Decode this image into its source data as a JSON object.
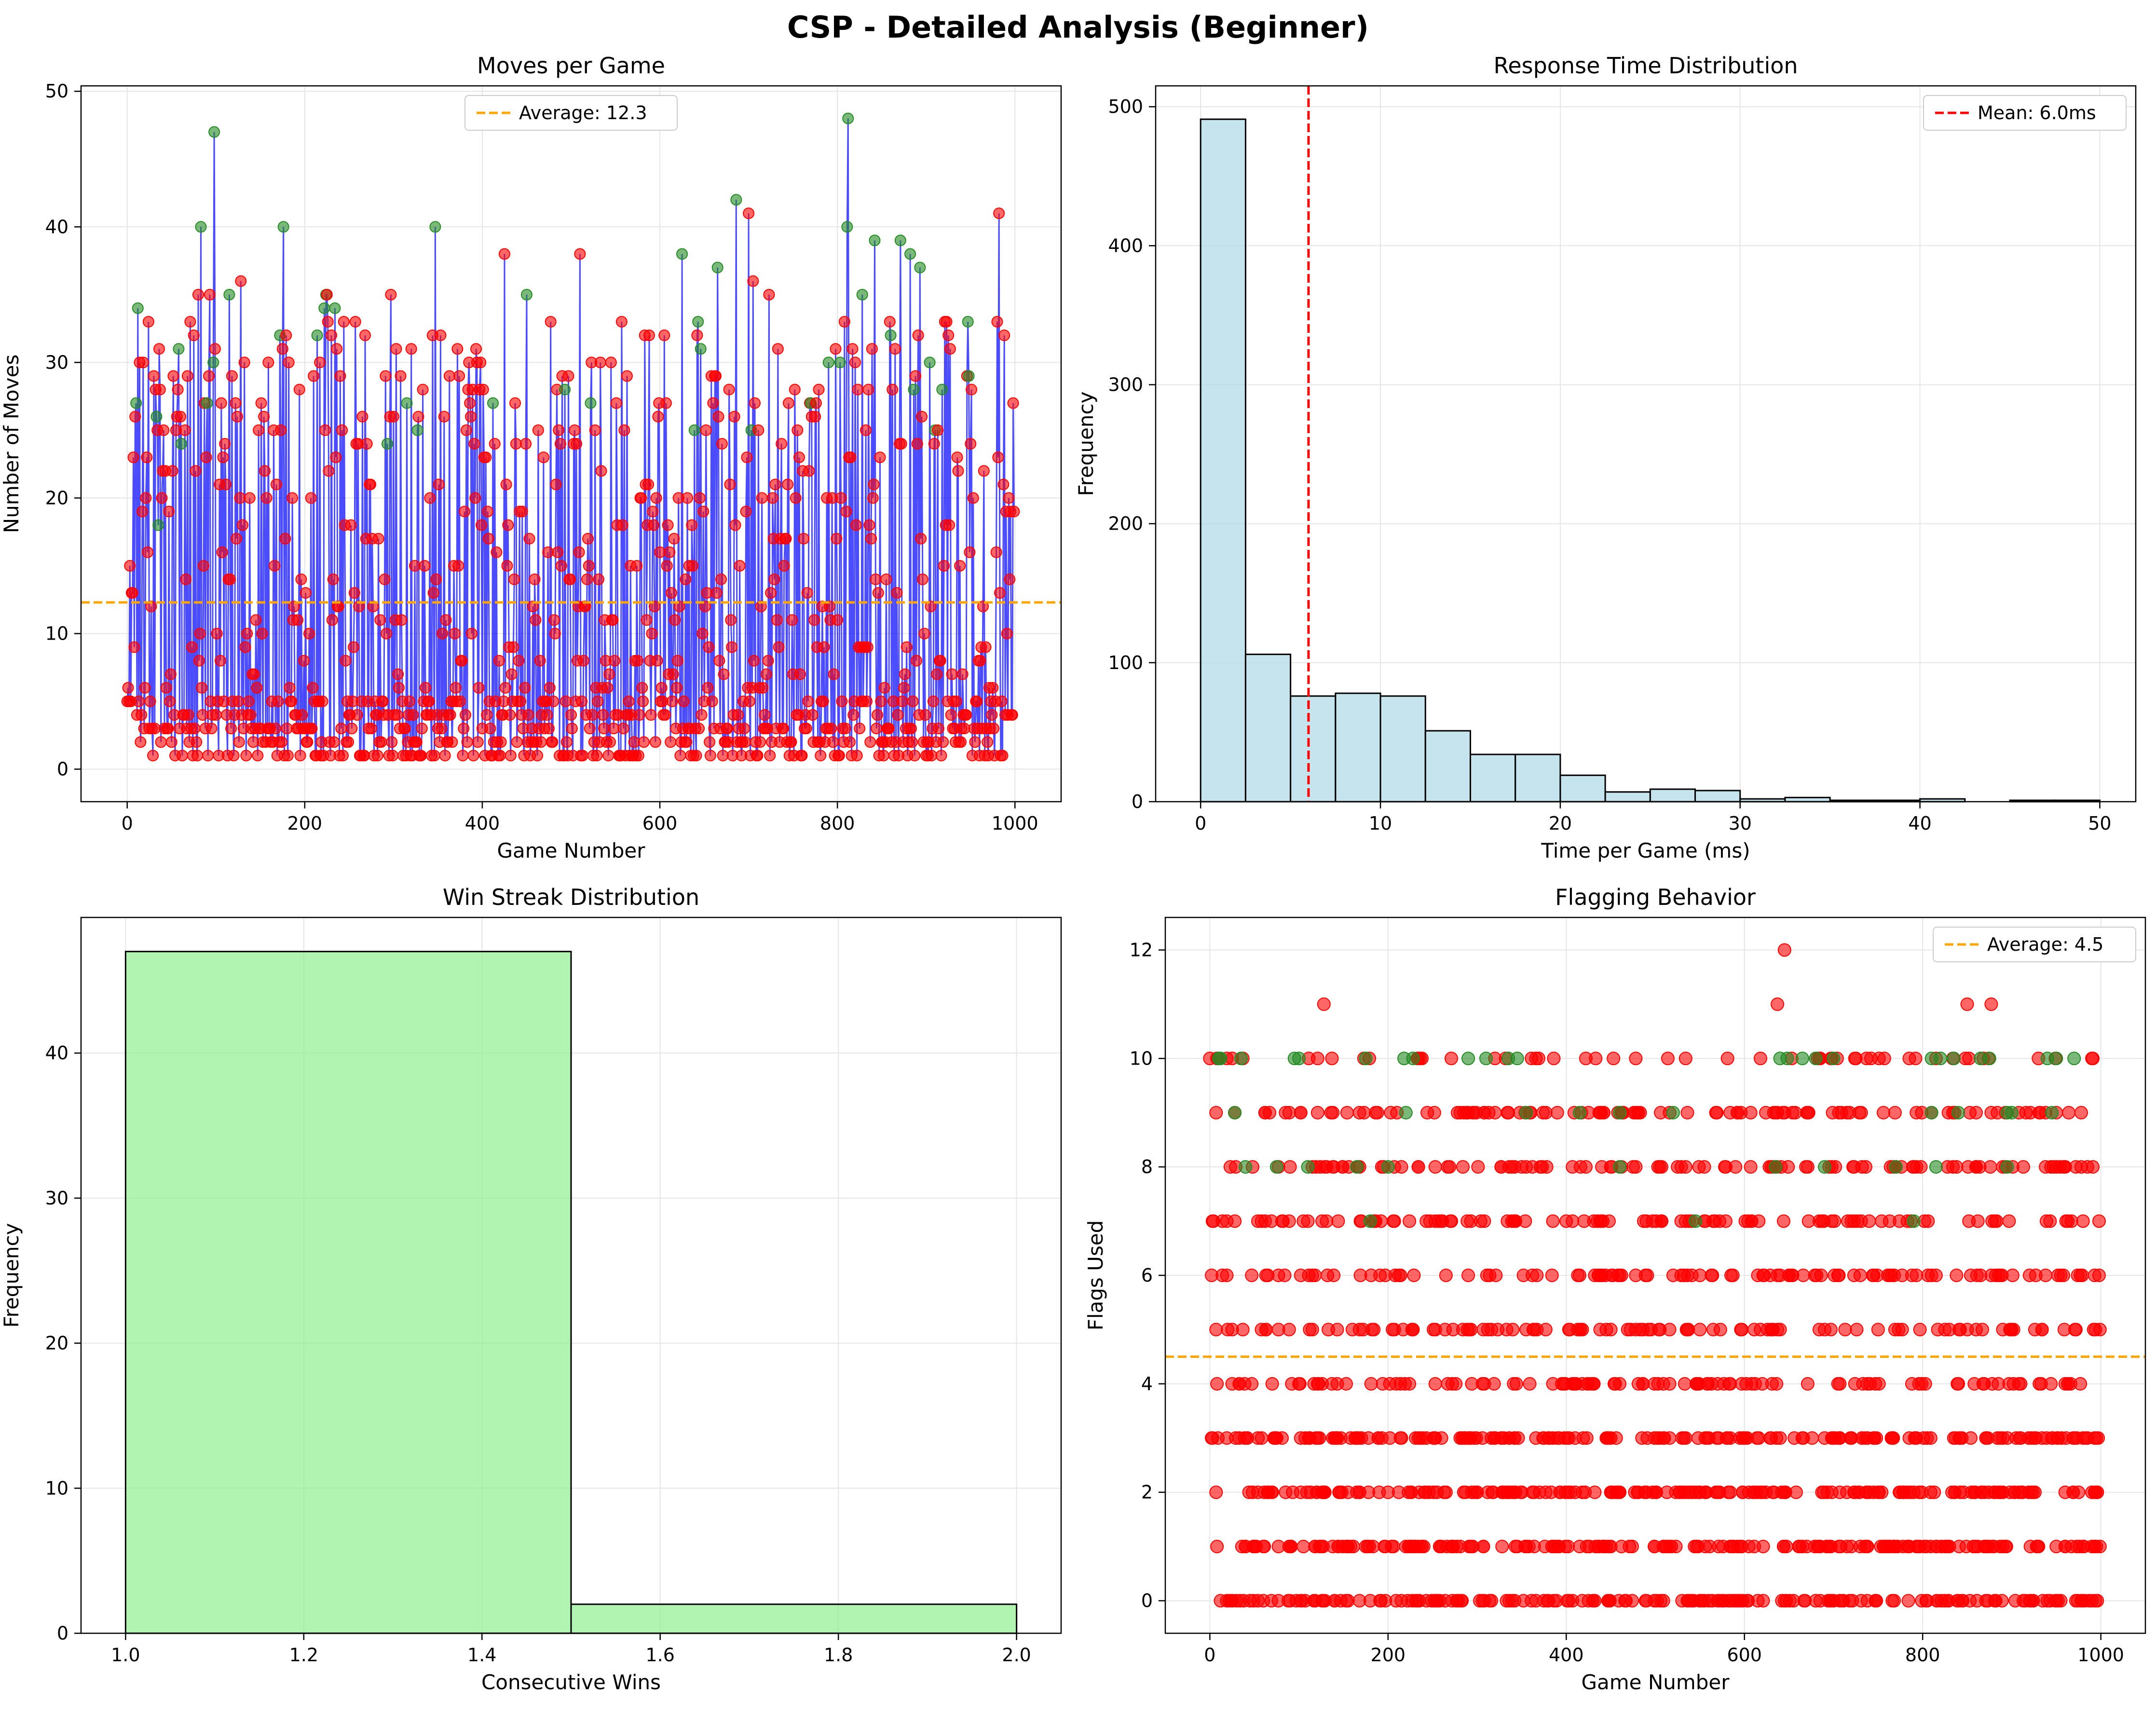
{
  "figure": {
    "title": "CSP - Detailed Analysis (Beginner)"
  },
  "colors": {
    "win_marker": "#228B22",
    "loss_marker": "#ff0000",
    "line": "#0000ff",
    "average_line": "#FFA500",
    "mean_line": "#ff0000",
    "hist_fill": "#ADD8E6",
    "streak_fill": "#90EE90",
    "edge": "#000000",
    "grid": "#e5e5e5"
  },
  "chart_data": [
    {
      "id": "moves",
      "type": "line",
      "title": "Moves per Game",
      "xlabel": "Game Number",
      "ylabel": "Number of Moves",
      "xlim": [
        -52,
        1052
      ],
      "ylim": [
        -2.4,
        50.4
      ],
      "xticks": [
        0,
        200,
        400,
        600,
        800,
        1000
      ],
      "yticks": [
        0,
        10,
        20,
        30,
        40,
        50
      ],
      "grid": true,
      "legend": {
        "label": "Average: 12.3",
        "placement": "top-center"
      },
      "average": 12.3,
      "n_games": 1000,
      "notable_points": {
        "wins": [
          [
            12,
            34
          ],
          [
            10,
            27
          ],
          [
            33,
            26
          ],
          [
            35,
            18
          ],
          [
            58,
            31
          ],
          [
            61,
            24
          ],
          [
            83,
            40
          ],
          [
            90,
            27
          ],
          [
            97,
            30
          ],
          [
            98,
            47
          ],
          [
            115,
            35
          ],
          [
            172,
            32
          ],
          [
            176,
            40
          ],
          [
            214,
            32
          ],
          [
            222,
            34
          ],
          [
            224,
            35
          ],
          [
            234,
            34
          ],
          [
            293,
            24
          ],
          [
            315,
            27
          ],
          [
            327,
            25
          ],
          [
            347,
            40
          ],
          [
            412,
            27
          ],
          [
            450,
            35
          ],
          [
            493,
            28
          ],
          [
            522,
            27
          ],
          [
            625,
            38
          ],
          [
            639,
            25
          ],
          [
            643,
            33
          ],
          [
            646,
            31
          ],
          [
            665,
            37
          ],
          [
            686,
            42
          ],
          [
            703,
            25
          ],
          [
            770,
            27
          ],
          [
            790,
            30
          ],
          [
            803,
            30
          ],
          [
            811,
            40
          ],
          [
            812,
            48
          ],
          [
            828,
            35
          ],
          [
            842,
            39
          ],
          [
            860,
            32
          ],
          [
            871,
            39
          ],
          [
            882,
            38
          ],
          [
            886,
            28
          ],
          [
            893,
            37
          ],
          [
            904,
            30
          ],
          [
            910,
            25
          ],
          [
            918,
            28
          ],
          [
            947,
            33
          ],
          [
            948,
            29
          ]
        ],
        "losses": [
          [
            1,
            6
          ],
          [
            3,
            15
          ],
          [
            5,
            13
          ],
          [
            14,
            30
          ],
          [
            17,
            19
          ],
          [
            22,
            23
          ],
          [
            30,
            29
          ],
          [
            40,
            22
          ],
          [
            52,
            29
          ],
          [
            57,
            28
          ],
          [
            68,
            29
          ],
          [
            75,
            32
          ],
          [
            80,
            35
          ],
          [
            87,
            27
          ],
          [
            93,
            35
          ],
          [
            99,
            31
          ],
          [
            108,
            23
          ],
          [
            128,
            36
          ],
          [
            132,
            30
          ],
          [
            148,
            25
          ],
          [
            165,
            25
          ],
          [
            182,
            30
          ],
          [
            194,
            28
          ],
          [
            210,
            29
          ],
          [
            225,
            35
          ],
          [
            230,
            32
          ],
          [
            240,
            29
          ],
          [
            260,
            24
          ],
          [
            270,
            24
          ],
          [
            297,
            35
          ],
          [
            308,
            29
          ],
          [
            320,
            31
          ],
          [
            333,
            28
          ],
          [
            353,
            32
          ],
          [
            363,
            29
          ],
          [
            372,
            31
          ],
          [
            385,
            30
          ],
          [
            404,
            23
          ],
          [
            425,
            38
          ],
          [
            437,
            27
          ],
          [
            477,
            33
          ],
          [
            488,
            24
          ],
          [
            510,
            38
          ],
          [
            533,
            30
          ],
          [
            545,
            30
          ],
          [
            563,
            29
          ],
          [
            588,
            32
          ],
          [
            607,
            27
          ],
          [
            678,
            28
          ],
          [
            700,
            41
          ],
          [
            705,
            36
          ],
          [
            723,
            35
          ],
          [
            733,
            31
          ],
          [
            755,
            25
          ],
          [
            798,
            31
          ],
          [
            820,
            30
          ],
          [
            835,
            28
          ],
          [
            965,
            22
          ],
          [
            980,
            33
          ],
          [
            982,
            41
          ],
          [
            993,
            20
          ]
        ]
      },
      "rendered_series_note": ""
    },
    {
      "id": "response",
      "type": "bar",
      "title": "Response Time Distribution",
      "xlabel": "Time per Game (ms)",
      "ylabel": "Frequency",
      "xlim": [
        -2.5,
        52.0
      ],
      "ylim": [
        0,
        515
      ],
      "xticks": [
        0,
        10,
        20,
        30,
        40,
        50
      ],
      "yticks": [
        0,
        100,
        200,
        300,
        400,
        500
      ],
      "grid": true,
      "legend": {
        "label": "Mean: 6.0ms",
        "placement": "top-right"
      },
      "mean": 6.0,
      "bin_edges": [
        0,
        2.5,
        5,
        7.5,
        10,
        12.5,
        15,
        17.5,
        20,
        22.5,
        25,
        27.5,
        30,
        32.5,
        35,
        37.5,
        40,
        42.5,
        45,
        47.5,
        50
      ],
      "values": [
        491,
        106,
        76,
        78,
        76,
        51,
        34,
        34,
        19,
        7,
        9,
        8,
        2,
        3,
        1,
        1,
        2,
        0,
        1,
        1
      ]
    },
    {
      "id": "streak",
      "type": "bar",
      "title": "Win Streak Distribution",
      "xlabel": "Consecutive Wins",
      "ylabel": "Frequency",
      "xlim": [
        0.95,
        2.05
      ],
      "ylim": [
        0,
        49.35
      ],
      "xticks": [
        1.0,
        1.2,
        1.4,
        1.6,
        1.8,
        2.0
      ],
      "xtick_labels": [
        "1.0",
        "1.2",
        "1.4",
        "1.6",
        "1.8",
        "2.0"
      ],
      "yticks": [
        0,
        10,
        20,
        30,
        40
      ],
      "grid": true,
      "bin_edges": [
        1.0,
        1.5,
        2.0
      ],
      "values": [
        47,
        2
      ]
    },
    {
      "id": "flags",
      "type": "scatter",
      "title": "Flagging Behavior",
      "xlabel": "Game Number",
      "ylabel": "Flags Used",
      "xlim": [
        -50,
        1050
      ],
      "ylim": [
        -0.6,
        12.6
      ],
      "xticks": [
        0,
        200,
        400,
        600,
        800,
        1000
      ],
      "yticks": [
        0,
        2,
        4,
        6,
        8,
        10,
        12
      ],
      "grid": true,
      "legend": {
        "label": "Average: 4.5",
        "placement": "top-right"
      },
      "average": 4.5,
      "notable_points": {
        "outliers": [
          [
            128,
            11
          ],
          [
            637,
            11
          ],
          [
            645,
            12
          ],
          [
            850,
            11
          ],
          [
            877,
            11
          ]
        ],
        "wins_at_10": [
          10,
          12,
          35,
          95,
          100,
          175,
          218,
          228,
          290,
          310,
          335,
          345,
          640,
          648,
          665,
          680,
          700,
          810,
          820,
          835,
          865,
          875,
          940,
          950,
          970
        ],
        "wins_at_9": [
          28,
          220,
          355,
          415,
          460,
          520,
          810,
          840,
          895,
          900,
          945
        ],
        "wins_at_8": [
          40,
          75,
          110,
          165,
          200,
          460,
          635,
          690,
          770,
          815,
          895
        ],
        "wins_at_7": [
          180,
          545,
          790
        ]
      }
    }
  ]
}
